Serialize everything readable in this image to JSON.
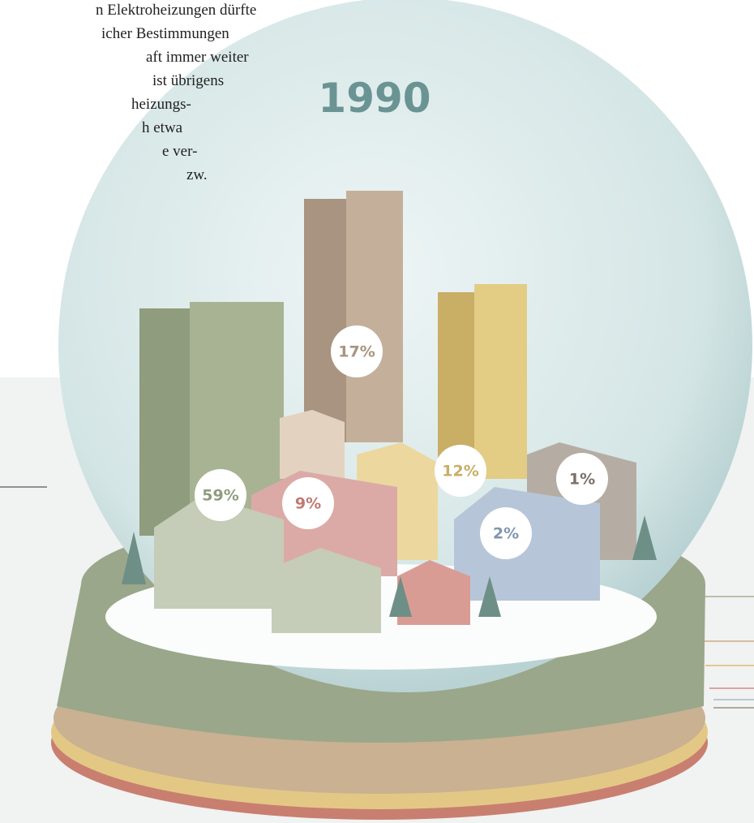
{
  "text": {
    "lines": [
      "n Elektroheizungen dürfte",
      "icher Bestimmungen",
      "aft immer weiter",
      "ist übrigens",
      "heizungs-",
      "h etwa",
      "e ver-",
      "zw."
    ]
  },
  "year": "1990",
  "labels": [
    "59%",
    "17%",
    "9%",
    "12%",
    "2%",
    "1%"
  ]
}
